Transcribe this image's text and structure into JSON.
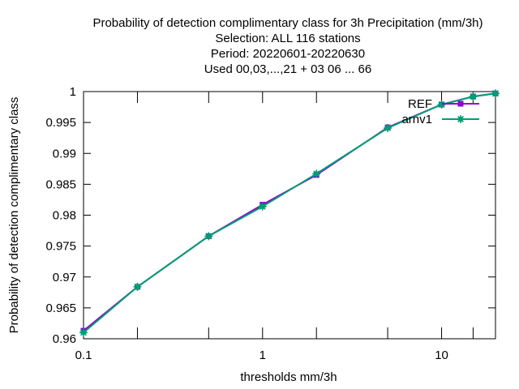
{
  "chart_data": {
    "type": "line",
    "title_lines": [
      "Probability of detection complimentary class  for 3h Precipitation (mm/3h)",
      "Selection: ALL    116 stations",
      "Period: 20220601-20220630",
      "Used  00,03,...,21  + 03 06 ... 66"
    ],
    "xlabel": "thresholds mm/3h",
    "ylabel": "Probability of detection complimentary class",
    "x_scale": "log",
    "xlim": [
      0.1,
      20
    ],
    "ylim": [
      0.96,
      1.0
    ],
    "x_ticks": [
      0.1,
      1,
      10
    ],
    "x_tick_labels": [
      "0.1",
      "1",
      "10"
    ],
    "x_minor_ticks": [
      0.2,
      0.5,
      2,
      5,
      15,
      20
    ],
    "y_ticks": [
      0.96,
      0.965,
      0.97,
      0.975,
      0.98,
      0.985,
      0.99,
      0.995,
      1.0
    ],
    "y_tick_labels": [
      "0.96",
      "0.965",
      "0.97",
      "0.975",
      "0.98",
      "0.985",
      "0.99",
      "0.995",
      "1"
    ],
    "grid": false,
    "legend_position": "top-right",
    "x": [
      0.1,
      0.2,
      0.5,
      1,
      2,
      5,
      10,
      15,
      20
    ],
    "series": [
      {
        "name": "REF",
        "color": "#9400d3",
        "marker": "square",
        "values": [
          0.9613,
          0.9684,
          0.9766,
          0.9817,
          0.9865,
          0.9942,
          0.9979,
          0.9992,
          0.9997
        ]
      },
      {
        "name": "arnv1",
        "color": "#009e73",
        "marker": "star",
        "values": [
          0.961,
          0.9684,
          0.9766,
          0.9814,
          0.9867,
          0.9941,
          0.9979,
          0.9992,
          0.9997
        ]
      }
    ]
  }
}
